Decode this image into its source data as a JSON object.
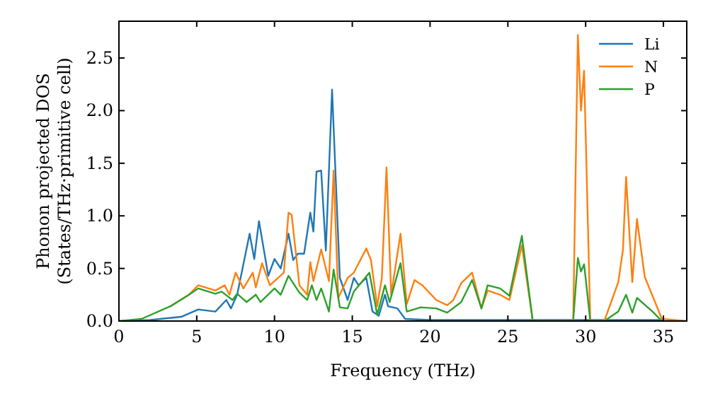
{
  "chart_data": {
    "type": "line",
    "xlabel": "Frequency (THz)",
    "ylabel": "Phonon projected DOS\n(States/THz·primitive cell)",
    "xlim": [
      0,
      36.5
    ],
    "ylim": [
      0,
      2.85
    ],
    "xticks": [
      0,
      5,
      10,
      15,
      20,
      25,
      30,
      35
    ],
    "yticks": [
      {
        "value": 0,
        "label": "0.0"
      },
      {
        "value": 0.5,
        "label": "0.5"
      },
      {
        "value": 1,
        "label": "1.0"
      },
      {
        "value": 1.5,
        "label": "1.5"
      },
      {
        "value": 2,
        "label": "2.0"
      },
      {
        "value": 2.5,
        "label": "2.5"
      }
    ],
    "grid": false,
    "legend": "top right",
    "line_style": "solid",
    "series": [
      {
        "name": "Li",
        "color": "#1f77b4",
        "x": [
          0,
          2,
          4,
          5.1,
          6.2,
          6.9,
          7.2,
          7.6,
          8.4,
          8.7,
          9.0,
          9.6,
          10.0,
          10.4,
          10.9,
          11.2,
          11.5,
          11.9,
          12.3,
          12.5,
          12.7,
          13.0,
          13.3,
          13.7,
          14.2,
          14.7,
          15.1,
          15.4,
          15.9,
          16.3,
          16.7,
          17.1,
          17.3,
          17.9,
          18.4,
          20,
          25,
          30,
          35
        ],
        "values": [
          0,
          0.01,
          0.04,
          0.11,
          0.09,
          0.2,
          0.12,
          0.25,
          0.83,
          0.59,
          0.95,
          0.43,
          0.59,
          0.5,
          0.83,
          0.58,
          0.64,
          0.64,
          1.03,
          0.85,
          1.42,
          1.43,
          0.67,
          2.2,
          0.41,
          0.2,
          0.41,
          0.34,
          0.41,
          0.09,
          0.05,
          0.25,
          0.14,
          0.12,
          0.02,
          0.01,
          0.01,
          0.01,
          0.01
        ]
      },
      {
        "name": "N",
        "color": "#ff7f0e",
        "x": [
          3.3,
          4.5,
          5.1,
          6.2,
          6.8,
          7.1,
          7.5,
          8.0,
          8.6,
          8.8,
          9.2,
          9.7,
          10.6,
          10.9,
          11.1,
          11.6,
          12.1,
          12.3,
          12.5,
          13.0,
          13.5,
          13.8,
          14.1,
          14.7,
          15.1,
          15.9,
          16.2,
          16.6,
          16.9,
          17.2,
          17.5,
          18.1,
          18.5,
          19.0,
          19.5,
          20.4,
          21.1,
          21.5,
          22.0,
          22.7,
          23.3,
          23.7,
          24.5,
          25.1,
          25.9,
          26.6,
          29.2,
          29.5,
          29.7,
          29.9,
          30.3,
          31.2,
          32.1,
          32.4,
          32.6,
          33.0,
          33.3,
          33.8,
          34.9,
          36.5
        ],
        "values": [
          0.14,
          0.25,
          0.34,
          0.29,
          0.34,
          0.25,
          0.46,
          0.31,
          0.46,
          0.32,
          0.55,
          0.34,
          0.46,
          1.03,
          1.01,
          0.34,
          0.25,
          0.56,
          0.38,
          0.68,
          0.38,
          1.43,
          0.22,
          0.41,
          0.46,
          0.69,
          0.58,
          0.14,
          0.41,
          1.46,
          0.25,
          0.83,
          0.16,
          0.39,
          0.34,
          0.2,
          0.15,
          0.2,
          0.36,
          0.46,
          0.12,
          0.29,
          0.25,
          0.2,
          0.72,
          0,
          0,
          2.72,
          2.0,
          2.38,
          0,
          0,
          0.37,
          0.68,
          1.37,
          0.37,
          0.97,
          0.42,
          0.02,
          0
        ]
      },
      {
        "name": "P",
        "color": "#2ca02c",
        "x": [
          0,
          1.45,
          3.3,
          4.5,
          5.1,
          6.2,
          6.6,
          7.3,
          7.6,
          8.2,
          8.8,
          9.1,
          10.0,
          10.4,
          10.9,
          11.6,
          12.1,
          12.4,
          12.7,
          13.0,
          13.5,
          13.8,
          14.2,
          14.7,
          15.1,
          16.1,
          16.6,
          17.1,
          17.4,
          18.1,
          18.5,
          19.4,
          20.4,
          21.1,
          22.0,
          22.7,
          23.3,
          23.7,
          24.5,
          25.1,
          25.9,
          26.6,
          29.2,
          29.5,
          29.7,
          29.9,
          30.3,
          31.2,
          32.1,
          32.6,
          33.0,
          33.3,
          34.3,
          34.9
        ],
        "values": [
          0,
          0.02,
          0.14,
          0.25,
          0.31,
          0.26,
          0.28,
          0.2,
          0.26,
          0.18,
          0.25,
          0.18,
          0.31,
          0.25,
          0.43,
          0.27,
          0.2,
          0.34,
          0.2,
          0.31,
          0.09,
          0.49,
          0.13,
          0.12,
          0.28,
          0.46,
          0.06,
          0.34,
          0.18,
          0.55,
          0.09,
          0.13,
          0.12,
          0.08,
          0.18,
          0.39,
          0.12,
          0.34,
          0.31,
          0.24,
          0.81,
          0,
          0,
          0.6,
          0.47,
          0.54,
          0,
          0,
          0.09,
          0.25,
          0.08,
          0.22,
          0.09,
          0
        ]
      }
    ]
  }
}
